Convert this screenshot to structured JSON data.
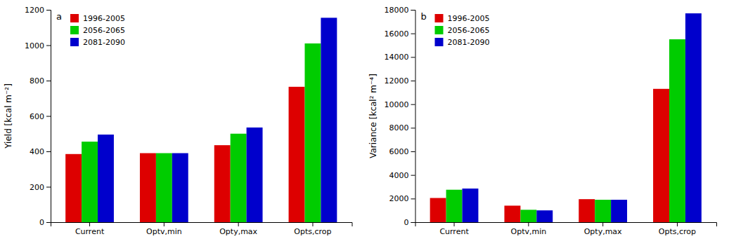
{
  "chart_data": [
    {
      "type": "bar",
      "annotation": "a",
      "ylabel": "Yield [kcal m⁻²]",
      "categories": [
        "Current",
        "Optv,min",
        "Opty,max",
        "Opts,crop"
      ],
      "series": [
        {
          "name": "1996-2005",
          "color": "#dd0000",
          "values": [
            385,
            390,
            435,
            765
          ]
        },
        {
          "name": "2056-2065",
          "color": "#00cc00",
          "values": [
            455,
            390,
            500,
            1010
          ]
        },
        {
          "name": "2081-2090",
          "color": "#0000cc",
          "values": [
            495,
            390,
            535,
            1155
          ]
        }
      ],
      "ylim": [
        0,
        1200
      ],
      "yticks": [
        0,
        200,
        400,
        600,
        800,
        1000,
        1200
      ],
      "grid": false,
      "legend": "upper left"
    },
    {
      "type": "bar",
      "annotation": "b",
      "ylabel": "Variance [kcal² m⁻⁴]",
      "categories": [
        "Current",
        "Optv,min",
        "Opty,max",
        "Opts,crop"
      ],
      "series": [
        {
          "name": "1996-2005",
          "color": "#dd0000",
          "values": [
            2050,
            1400,
            1950,
            11300
          ]
        },
        {
          "name": "2056-2065",
          "color": "#00cc00",
          "values": [
            2750,
            1050,
            1900,
            15500
          ]
        },
        {
          "name": "2081-2090",
          "color": "#0000cc",
          "values": [
            2850,
            1000,
            1900,
            17700
          ]
        }
      ],
      "ylim": [
        0,
        18000
      ],
      "yticks": [
        0,
        2000,
        4000,
        6000,
        8000,
        10000,
        12000,
        14000,
        16000,
        18000
      ],
      "grid": false,
      "legend": "upper left"
    }
  ]
}
